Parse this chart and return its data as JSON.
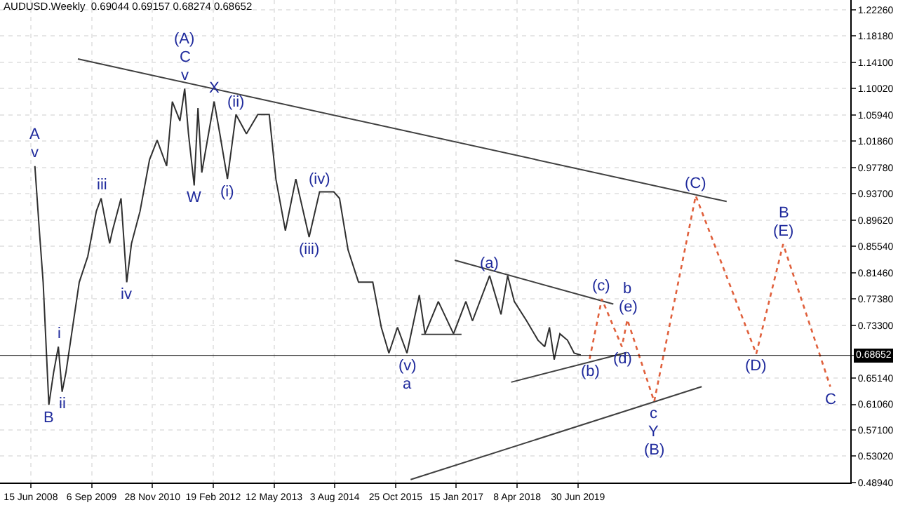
{
  "chart_data": {
    "type": "line",
    "title": "AUDUSD.Weekly  0.69044 0.69157 0.68274 0.68652",
    "xlim": [
      "2007-11-01",
      "2024-12-27"
    ],
    "ylim": [
      0.4894,
      1.2374
    ],
    "xticks": [
      {
        "value": "2008-06-15",
        "label": "15 Jun 2008"
      },
      {
        "value": "2009-09-06",
        "label": "6 Sep 2009"
      },
      {
        "value": "2010-11-28",
        "label": "28 Nov 2010"
      },
      {
        "value": "2012-02-19",
        "label": "19 Feb 2012"
      },
      {
        "value": "2013-05-12",
        "label": "12 May 2013"
      },
      {
        "value": "2014-08-03",
        "label": "3 Aug 2014"
      },
      {
        "value": "2015-10-25",
        "label": "25 Oct 2015"
      },
      {
        "value": "2017-01-15",
        "label": "15 Jan 2017"
      },
      {
        "value": "2018-04-08",
        "label": "8 Apr 2018"
      },
      {
        "value": "2019-06-30",
        "label": "30 Jun 2019"
      }
    ],
    "yticks": [
      {
        "value": 0.4894,
        "label": "0.48940"
      },
      {
        "value": 0.5302,
        "label": "0.53020"
      },
      {
        "value": 0.571,
        "label": "0.57100"
      },
      {
        "value": 0.6106,
        "label": "0.61060"
      },
      {
        "value": 0.6514,
        "label": "0.65140"
      },
      {
        "value": 0.733,
        "label": "0.73300"
      },
      {
        "value": 0.7738,
        "label": "0.77380"
      },
      {
        "value": 0.8146,
        "label": "0.81460"
      },
      {
        "value": 0.8554,
        "label": "0.85540"
      },
      {
        "value": 0.8962,
        "label": "0.89620"
      },
      {
        "value": 0.937,
        "label": "0.93700"
      },
      {
        "value": 0.9778,
        "label": "0.97780"
      },
      {
        "value": 1.0186,
        "label": "1.01860"
      },
      {
        "value": 1.0594,
        "label": "1.05940"
      },
      {
        "value": 1.1002,
        "label": "1.10020"
      },
      {
        "value": 1.141,
        "label": "1.14100"
      },
      {
        "value": 1.1818,
        "label": "1.18180"
      },
      {
        "value": 1.2226,
        "label": "1.22260"
      }
    ],
    "grid": true,
    "ref_lines": [
      {
        "axis": "y",
        "value": 0.68652,
        "label": "0.68652",
        "color": "#000000"
      }
    ],
    "series": [
      {
        "color": "#303030",
        "line_style": "solid",
        "x": [
          "2008-07-15",
          "2008-08-17",
          "2008-09-14",
          "2008-10-26",
          "2008-11-30",
          "2009-01-04",
          "2009-02-01",
          "2009-03-01",
          "2009-04-12",
          "2009-06-07",
          "2009-08-09",
          "2009-10-11",
          "2009-11-15",
          "2010-01-17",
          "2010-02-07",
          "2010-04-11",
          "2010-05-23",
          "2010-06-27",
          "2010-08-29",
          "2010-11-07",
          "2011-01-02",
          "2011-03-13",
          "2011-04-24",
          "2011-06-19",
          "2011-07-24",
          "2011-08-21",
          "2011-10-02",
          "2011-10-30",
          "2011-11-27",
          "2012-02-26",
          "2012-04-08",
          "2012-06-03",
          "2012-08-05",
          "2012-10-21",
          "2013-01-13",
          "2013-04-07",
          "2013-05-26",
          "2013-08-04",
          "2013-10-20",
          "2014-01-26",
          "2014-04-13",
          "2014-07-27",
          "2014-09-07",
          "2014-11-09",
          "2015-01-25",
          "2015-05-10",
          "2015-07-12",
          "2015-09-06",
          "2015-11-08",
          "2016-01-17",
          "2016-04-17",
          "2016-05-29",
          "2016-09-04",
          "2016-12-25",
          "2017-03-26",
          "2017-05-14",
          "2017-09-17",
          "2017-12-10",
          "2018-01-28",
          "2018-03-18",
          "2018-06-17",
          "2018-09-09",
          "2018-10-28",
          "2018-12-02",
          "2019-01-06",
          "2019-02-17",
          "2019-04-14",
          "2019-06-02",
          "2019-07-21"
        ],
        "values": [
          0.98,
          0.88,
          0.8,
          0.61,
          0.66,
          0.7,
          0.63,
          0.66,
          0.72,
          0.8,
          0.84,
          0.91,
          0.93,
          0.86,
          0.88,
          0.93,
          0.8,
          0.86,
          0.91,
          0.99,
          1.02,
          0.98,
          1.08,
          1.05,
          1.1,
          1.03,
          0.95,
          1.07,
          0.97,
          1.08,
          1.03,
          0.96,
          1.06,
          1.03,
          1.06,
          1.06,
          0.96,
          0.88,
          0.96,
          0.87,
          0.94,
          0.94,
          0.93,
          0.85,
          0.8,
          0.8,
          0.73,
          0.69,
          0.73,
          0.69,
          0.78,
          0.72,
          0.77,
          0.72,
          0.77,
          0.74,
          0.81,
          0.75,
          0.81,
          0.77,
          0.74,
          0.71,
          0.7,
          0.73,
          0.68,
          0.72,
          0.71,
          0.69,
          0.687
        ]
      },
      {
        "color": "#404040",
        "line_style": "solid",
        "x": [
          "2009-05-28",
          "2022-06-30"
        ],
        "values": [
          1.146,
          0.925
        ]
      },
      {
        "color": "#404040",
        "line_style": "solid",
        "x": [
          "2016-02-13",
          "2021-12-28"
        ],
        "values": [
          0.494,
          0.638
        ]
      },
      {
        "color": "#404040",
        "line_style": "solid",
        "x": [
          "2017-01-03",
          "2020-03-17"
        ],
        "values": [
          0.834,
          0.766
        ]
      },
      {
        "color": "#404040",
        "line_style": "solid",
        "x": [
          "2018-02-23",
          "2020-06-24"
        ],
        "values": [
          0.645,
          0.691
        ]
      },
      {
        "color": "#404040",
        "line_style": "solid",
        "x": [
          "2016-05-02",
          "2017-02-22"
        ],
        "values": [
          0.719,
          0.719
        ]
      },
      {
        "color": "#e0603c",
        "line_style": "dotted",
        "x": [
          "2019-09-24",
          "2019-12-23",
          "2020-05-19",
          "2020-06-28",
          "2021-01-12",
          "2021-11-14",
          "2023-02-03",
          "2023-08-20",
          "2024-08-02"
        ],
        "values": [
          0.681,
          0.774,
          0.7,
          0.742,
          0.615,
          0.934,
          0.689,
          0.859,
          0.638
        ]
      }
    ],
    "annotations": [
      {
        "text": "(A)",
        "x": "2011-07-24",
        "y": 1.1
      },
      {
        "text": "C",
        "x": "2011-07-24",
        "y": 1.1
      },
      {
        "text": "v",
        "x": "2011-07-24",
        "y": 1.1
      },
      {
        "text": "X",
        "x": "2012-02-26",
        "y": 1.08
      },
      {
        "text": "W",
        "x": "2011-10-02",
        "y": 0.95
      },
      {
        "text": "(ii)",
        "x": "2012-08-05",
        "y": 1.06
      },
      {
        "text": "(i)",
        "x": "2012-06-03",
        "y": 0.96
      },
      {
        "text": "(iv)",
        "x": "2014-04-13",
        "y": 0.94
      },
      {
        "text": "(iii)",
        "x": "2014-01-26",
        "y": 0.87
      },
      {
        "text": "(v)",
        "x": "2016-01-17",
        "y": 0.69
      },
      {
        "text": "a",
        "x": "2016-01-17",
        "y": 0.69
      },
      {
        "text": "A",
        "x": "2008-07-15",
        "y": 0.98
      },
      {
        "text": "v",
        "x": "2008-07-15",
        "y": 0.98
      },
      {
        "text": "iii",
        "x": "2009-11-15",
        "y": 0.93
      },
      {
        "text": "iv",
        "x": "2010-05-23",
        "y": 0.8
      },
      {
        "text": "i",
        "x": "2009-01-04",
        "y": 0.7
      },
      {
        "text": "ii",
        "x": "2009-02-01",
        "y": 0.63
      },
      {
        "text": "B",
        "x": "2008-10-26",
        "y": 0.61
      },
      {
        "text": "(a)",
        "x": "2017-09-17",
        "y": 0.81
      },
      {
        "text": "(b)",
        "x": "2019-09-24",
        "y": 0.681
      },
      {
        "text": "(c)",
        "x": "2019-12-23",
        "y": 0.774
      },
      {
        "text": "b",
        "x": "2020-06-28",
        "y": 0.742
      },
      {
        "text": "(e)",
        "x": "2020-06-28",
        "y": 0.742
      },
      {
        "text": "(d)",
        "x": "2020-05-19",
        "y": 0.7
      },
      {
        "text": "c",
        "x": "2021-01-12",
        "y": 0.615
      },
      {
        "text": "Y",
        "x": "2021-01-12",
        "y": 0.615
      },
      {
        "text": "(B)",
        "x": "2021-01-12",
        "y": 0.615
      },
      {
        "text": "(C)",
        "x": "2021-11-14",
        "y": 0.934
      },
      {
        "text": "B",
        "x": "2023-08-20",
        "y": 0.859
      },
      {
        "text": "(E)",
        "x": "2023-08-20",
        "y": 0.859
      },
      {
        "text": "(D)",
        "x": "2023-02-03",
        "y": 0.689
      },
      {
        "text": "C",
        "x": "2024-08-02",
        "y": 0.638
      }
    ]
  }
}
